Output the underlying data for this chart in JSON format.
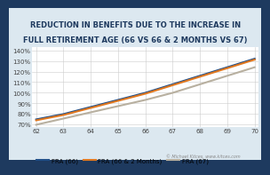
{
  "title_line1": "REDUCTION IN BENEFITS DUE TO THE INCREASE IN",
  "title_line2": "FULL RETIREMENT AGE (66 VS 66 & 2 MONTHS VS 67)",
  "x_ticks": [
    62,
    63,
    64,
    65,
    66,
    67,
    68,
    69,
    70
  ],
  "x_min": 62,
  "x_max": 70,
  "y_ticks": [
    0.7,
    0.8,
    0.9,
    1.0,
    1.1,
    1.2,
    1.3,
    1.4
  ],
  "y_tick_labels": [
    "70%",
    "80%",
    "90%",
    "100%",
    "110%",
    "120%",
    "130%",
    "140%"
  ],
  "fra66_values": [
    0.75,
    0.8,
    0.8667,
    0.9333,
    1.0,
    1.08,
    1.16,
    1.24,
    1.32
  ],
  "fra66_2m_values": [
    0.7417,
    0.7917,
    0.8583,
    0.925,
    0.9917,
    1.0717,
    1.1517,
    1.2317,
    1.3117
  ],
  "fra67_values": [
    0.7,
    0.7583,
    0.8167,
    0.875,
    0.9333,
    1.0,
    1.08,
    1.16,
    1.24
  ],
  "fra66_color": "#1f4e87",
  "fra66_2m_color": "#e07820",
  "fra67_color": "#b8b0a0",
  "line_width": 1.5,
  "outer_bg_color": "#1e3a5f",
  "inner_bg_color": "#dce8f0",
  "plot_bg_color": "#ffffff",
  "legend_labels": [
    "FRA (66)",
    "FRA (66 & 2 Months)",
    "FRA (67)"
  ],
  "watermark": "© Michael Kitces, www.kitces.com",
  "title_fontsize": 6.0,
  "axis_fontsize": 5.0,
  "legend_fontsize": 5.0
}
